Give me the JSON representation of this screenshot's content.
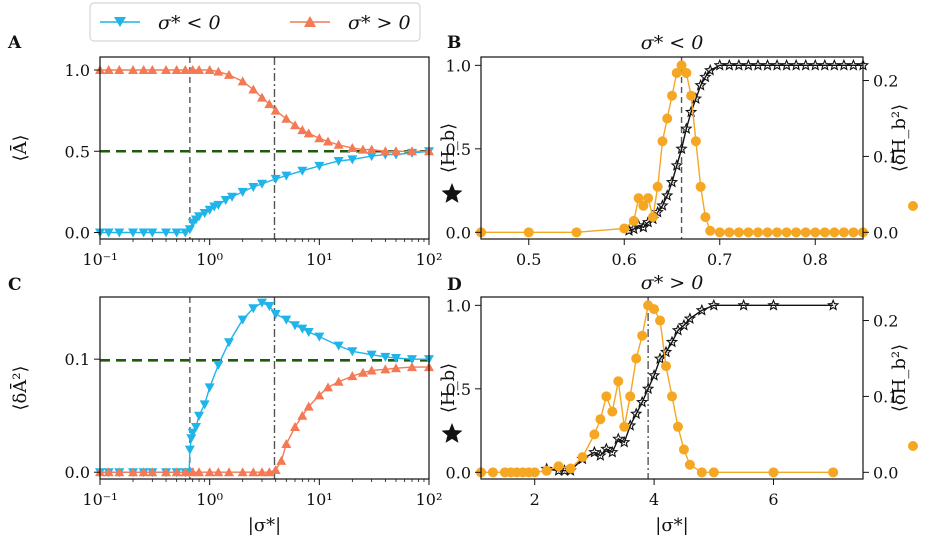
{
  "legend": {
    "entries": [
      {
        "label": "σ* < 0",
        "color": "#1fb4ea",
        "marker": "triangle-down"
      },
      {
        "label": "σ* > 0",
        "color": "#f47a55",
        "marker": "triangle-up"
      }
    ]
  },
  "colors": {
    "blue": "#1fb4ea",
    "red": "#f47a55",
    "orange": "#f5a623",
    "black": "#111111",
    "green": "#1e5b0e",
    "vline": "#555555"
  },
  "chart_data": [
    {
      "panel_label": "A",
      "type": "line",
      "xscale": "log",
      "xlim": [
        0.1,
        100
      ],
      "ylim": [
        -0.04,
        1.08
      ],
      "ylabel": "⟨Ā⟩",
      "xlabel": "",
      "xtick_labels": [
        "10⁻¹",
        "10⁰",
        "10¹",
        "10²"
      ],
      "ytick_values": [
        0.0,
        0.5,
        1.0
      ],
      "ytick_labels": [
        "0.0",
        "0.5",
        "1.0"
      ],
      "hline": 0.5,
      "vlines": [
        {
          "x": 0.66,
          "style": "dashed"
        },
        {
          "x": 3.9,
          "style": "dashdot"
        }
      ],
      "series": [
        {
          "name": "σ* < 0",
          "color": "#1fb4ea",
          "marker": "triangle-down",
          "x": [
            0.1,
            0.12,
            0.15,
            0.2,
            0.25,
            0.3,
            0.4,
            0.5,
            0.6,
            0.66,
            0.7,
            0.75,
            0.8,
            0.9,
            1.0,
            1.1,
            1.2,
            1.4,
            1.6,
            2.0,
            2.5,
            3.0,
            4.0,
            5.0,
            7.0,
            10.0,
            15.0,
            20.0,
            30.0,
            40.0,
            50.0,
            70.0,
            100.0
          ],
          "y": [
            0.0,
            0.0,
            0.0,
            0.0,
            0.0,
            0.0,
            0.0,
            0.0,
            0.0,
            0.02,
            0.06,
            0.08,
            0.1,
            0.12,
            0.14,
            0.16,
            0.17,
            0.2,
            0.22,
            0.25,
            0.28,
            0.3,
            0.33,
            0.35,
            0.38,
            0.41,
            0.44,
            0.45,
            0.47,
            0.48,
            0.48,
            0.49,
            0.5
          ]
        },
        {
          "name": "σ* > 0",
          "color": "#f47a55",
          "marker": "triangle-up",
          "x": [
            0.1,
            0.12,
            0.15,
            0.2,
            0.25,
            0.3,
            0.4,
            0.5,
            0.6,
            0.7,
            0.8,
            1.0,
            1.2,
            1.5,
            2.0,
            2.5,
            3.0,
            3.5,
            4.0,
            5.0,
            6.0,
            7.0,
            8.0,
            10.0,
            12.0,
            15.0,
            20.0,
            25.0,
            30.0,
            40.0,
            50.0,
            70.0,
            100.0
          ],
          "y": [
            1.0,
            1.0,
            1.0,
            1.0,
            1.0,
            1.0,
            1.0,
            1.0,
            1.0,
            1.0,
            1.0,
            1.0,
            0.99,
            0.97,
            0.93,
            0.88,
            0.83,
            0.79,
            0.75,
            0.7,
            0.66,
            0.63,
            0.61,
            0.58,
            0.56,
            0.54,
            0.52,
            0.51,
            0.51,
            0.5,
            0.5,
            0.5,
            0.5
          ]
        }
      ]
    },
    {
      "panel_label": "B",
      "type": "line",
      "title": "σ* < 0",
      "xscale": "linear",
      "xlim": [
        0.45,
        0.85
      ],
      "ylim": [
        -0.04,
        1.05
      ],
      "ylim_right": [
        -0.0088,
        0.231
      ],
      "ylabel": "⟨H_b⟩",
      "ylabel_right": "⟨δH_b²⟩",
      "xtick_values": [
        0.5,
        0.6,
        0.7,
        0.8
      ],
      "xtick_labels": [
        "0.5",
        "0.6",
        "0.7",
        "0.8"
      ],
      "ytick_values": [
        0.0,
        0.5,
        1.0
      ],
      "ytick_labels": [
        "0.0",
        "0.5",
        "1.0"
      ],
      "ytick_right_values": [
        0.0,
        0.1,
        0.2
      ],
      "ytick_right_labels": [
        "0.0",
        "0.1",
        "0.2"
      ],
      "vlines": [
        {
          "x": 0.66,
          "style": "dashed"
        }
      ],
      "series": [
        {
          "name": "⟨H_b⟩",
          "color": "#111111",
          "marker": "star",
          "axis": "left",
          "x": [
            0.605,
            0.61,
            0.615,
            0.62,
            0.625,
            0.63,
            0.635,
            0.64,
            0.645,
            0.65,
            0.655,
            0.66,
            0.665,
            0.67,
            0.675,
            0.68,
            0.685,
            0.69,
            0.7,
            0.71,
            0.72,
            0.73,
            0.74,
            0.75,
            0.76,
            0.77,
            0.78,
            0.79,
            0.8,
            0.81,
            0.82,
            0.83,
            0.84,
            0.85
          ],
          "y": [
            0.01,
            0.02,
            0.04,
            0.03,
            0.06,
            0.08,
            0.12,
            0.16,
            0.22,
            0.3,
            0.4,
            0.5,
            0.62,
            0.72,
            0.8,
            0.88,
            0.93,
            0.97,
            1.0,
            1.0,
            1.0,
            1.0,
            1.0,
            1.0,
            1.0,
            1.0,
            1.0,
            1.0,
            1.0,
            1.0,
            1.0,
            1.0,
            1.0,
            1.0
          ]
        },
        {
          "name": "⟨δH_b²⟩",
          "color": "#f5a623",
          "marker": "circle",
          "axis": "right",
          "x": [
            0.45,
            0.5,
            0.55,
            0.6,
            0.61,
            0.615,
            0.62,
            0.625,
            0.63,
            0.635,
            0.64,
            0.645,
            0.65,
            0.655,
            0.66,
            0.665,
            0.67,
            0.675,
            0.68,
            0.685,
            0.69,
            0.7,
            0.71,
            0.72,
            0.73,
            0.74,
            0.75,
            0.76,
            0.77,
            0.78,
            0.79,
            0.8,
            0.81,
            0.82,
            0.83,
            0.84,
            0.85
          ],
          "y": [
            0.0,
            0.0,
            0.0,
            0.005,
            0.015,
            0.045,
            0.035,
            0.045,
            0.02,
            0.06,
            0.12,
            0.15,
            0.18,
            0.21,
            0.22,
            0.21,
            0.18,
            0.12,
            0.06,
            0.02,
            0.002,
            0.0,
            0.0,
            0.0,
            0.0,
            0.0,
            0.0,
            0.0,
            0.0,
            0.0,
            0.0,
            0.0,
            0.0,
            0.0,
            0.0,
            0.0,
            0.0
          ]
        }
      ]
    },
    {
      "panel_label": "C",
      "type": "line",
      "xscale": "log",
      "xlim": [
        0.1,
        100
      ],
      "ylim": [
        -0.006,
        0.155
      ],
      "ylabel": "⟨δĀ²⟩",
      "xlabel": "|σ*|",
      "xtick_labels": [
        "10⁻¹",
        "10⁰",
        "10¹",
        "10²"
      ],
      "ytick_values": [
        0.0,
        0.1
      ],
      "ytick_labels": [
        "0.0",
        "0.1"
      ],
      "hline": 0.099,
      "vlines": [
        {
          "x": 0.66,
          "style": "dashed"
        },
        {
          "x": 3.9,
          "style": "dashdot"
        }
      ],
      "series": [
        {
          "name": "σ* < 0",
          "color": "#1fb4ea",
          "marker": "triangle-down",
          "x": [
            0.1,
            0.12,
            0.15,
            0.2,
            0.25,
            0.3,
            0.4,
            0.5,
            0.6,
            0.65,
            0.66,
            0.68,
            0.7,
            0.75,
            0.8,
            0.9,
            1.0,
            1.2,
            1.5,
            2.0,
            2.5,
            3.0,
            3.5,
            4.0,
            5.0,
            6.0,
            7.0,
            8.0,
            10.0,
            15.0,
            20.0,
            30.0,
            40.0,
            50.0,
            70.0,
            100.0
          ],
          "y": [
            0.0,
            0.0,
            0.0,
            0.0,
            0.0,
            0.0,
            0.0,
            0.0,
            0.0,
            0.0,
            0.02,
            0.03,
            0.035,
            0.04,
            0.05,
            0.06,
            0.075,
            0.095,
            0.115,
            0.135,
            0.145,
            0.15,
            0.147,
            0.14,
            0.135,
            0.13,
            0.127,
            0.124,
            0.12,
            0.112,
            0.107,
            0.104,
            0.102,
            0.101,
            0.1,
            0.1
          ]
        },
        {
          "name": "σ* > 0",
          "color": "#f47a55",
          "marker": "triangle-up",
          "x": [
            0.1,
            0.12,
            0.15,
            0.2,
            0.25,
            0.3,
            0.4,
            0.5,
            0.6,
            0.7,
            0.8,
            1.0,
            1.2,
            1.5,
            2.0,
            2.5,
            3.0,
            3.5,
            4.0,
            4.5,
            5.0,
            6.0,
            7.0,
            8.0,
            10.0,
            12.0,
            15.0,
            20.0,
            25.0,
            30.0,
            40.0,
            50.0,
            70.0,
            100.0
          ],
          "y": [
            0.0,
            0.0,
            0.0,
            0.0,
            0.0,
            0.0,
            0.0,
            0.0,
            0.0,
            0.0,
            0.0,
            0.0,
            0.0,
            0.0,
            0.0,
            0.0,
            0.0,
            0.0,
            0.002,
            0.01,
            0.025,
            0.04,
            0.05,
            0.058,
            0.068,
            0.075,
            0.08,
            0.085,
            0.088,
            0.09,
            0.091,
            0.092,
            0.093,
            0.093
          ]
        }
      ]
    },
    {
      "panel_label": "D",
      "type": "line",
      "title": "σ* > 0",
      "xscale": "linear",
      "xlim": [
        1.1,
        7.5
      ],
      "ylim": [
        -0.04,
        1.05
      ],
      "ylim_right": [
        -0.0088,
        0.231
      ],
      "ylabel": "⟨H_b⟩",
      "ylabel_right": "⟨δH_b²⟩",
      "xlabel": "|σ*|",
      "xtick_values": [
        2,
        4,
        6
      ],
      "xtick_labels": [
        "2",
        "4",
        "6"
      ],
      "ytick_values": [
        0.0,
        0.5,
        1.0
      ],
      "ytick_labels": [
        "0.0",
        "0.5",
        "1.0"
      ],
      "ytick_right_values": [
        0.0,
        0.1,
        0.2
      ],
      "ytick_right_labels": [
        "0.0",
        "0.1",
        "0.2"
      ],
      "vlines": [
        {
          "x": 3.9,
          "style": "dashdot"
        }
      ],
      "series": [
        {
          "name": "⟨H_b⟩",
          "color": "#111111",
          "marker": "star",
          "axis": "left",
          "x": [
            2.2,
            2.4,
            2.5,
            2.6,
            2.8,
            3.0,
            3.1,
            3.2,
            3.3,
            3.4,
            3.5,
            3.6,
            3.7,
            3.8,
            3.9,
            4.0,
            4.1,
            4.2,
            4.3,
            4.4,
            4.5,
            4.6,
            4.8,
            5.0,
            5.5,
            6.0,
            7.0
          ],
          "y": [
            0.02,
            0.01,
            0.01,
            0.01,
            0.08,
            0.12,
            0.1,
            0.14,
            0.12,
            0.2,
            0.18,
            0.28,
            0.35,
            0.42,
            0.5,
            0.58,
            0.68,
            0.72,
            0.78,
            0.85,
            0.88,
            0.92,
            0.97,
            1.0,
            1.0,
            1.0,
            1.0
          ]
        },
        {
          "name": "⟨δH_b²⟩",
          "color": "#f5a623",
          "marker": "circle",
          "axis": "right",
          "x": [
            1.1,
            1.3,
            1.5,
            1.6,
            1.7,
            1.8,
            1.9,
            2.0,
            2.2,
            2.4,
            2.6,
            2.8,
            3.0,
            3.1,
            3.2,
            3.3,
            3.4,
            3.5,
            3.6,
            3.7,
            3.8,
            3.9,
            4.0,
            4.1,
            4.2,
            4.3,
            4.4,
            4.5,
            4.6,
            4.8,
            5.0,
            6.0,
            7.0
          ],
          "y": [
            0.0,
            0.0,
            0.0,
            0.0,
            0.0,
            0.0,
            0.0,
            0.0,
            0.002,
            0.008,
            0.005,
            0.02,
            0.05,
            0.07,
            0.1,
            0.08,
            0.12,
            0.06,
            0.1,
            0.15,
            0.18,
            0.22,
            0.215,
            0.2,
            0.14,
            0.1,
            0.06,
            0.03,
            0.01,
            0.0,
            0.0,
            0.0,
            0.0
          ]
        }
      ]
    }
  ]
}
